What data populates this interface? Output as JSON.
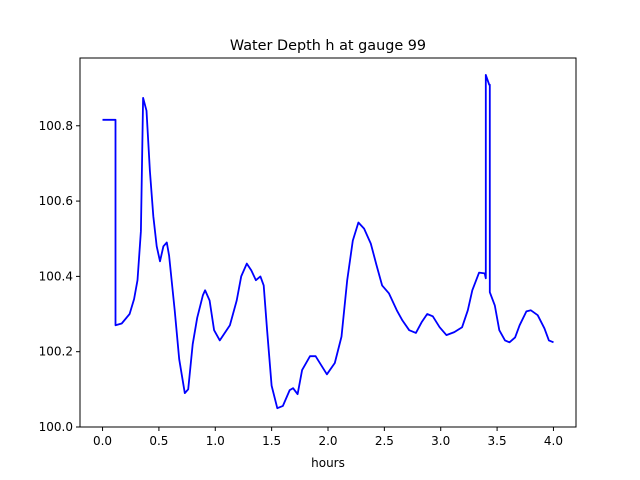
{
  "chart_data": {
    "type": "line",
    "title": "Water Depth h at gauge 99",
    "xlabel": "hours",
    "ylabel": "",
    "xlim": [
      -0.2,
      4.2
    ],
    "ylim": [
      100.0,
      100.98
    ],
    "xticks": [
      0.0,
      0.5,
      1.0,
      1.5,
      2.0,
      2.5,
      3.0,
      3.5,
      4.0
    ],
    "xtick_labels": [
      "0.0",
      "0.5",
      "1.0",
      "1.5",
      "2.0",
      "2.5",
      "3.0",
      "3.5",
      "4.0"
    ],
    "yticks": [
      100.0,
      100.2,
      100.4,
      100.6,
      100.8
    ],
    "ytick_labels": [
      "100.0",
      "100.2",
      "100.4",
      "100.6",
      "100.8"
    ],
    "grid": false,
    "series": [
      {
        "name": "h",
        "color": "#0000ff",
        "x": [
          0,
          0.115,
          0.115,
          0.17,
          0.24,
          0.28,
          0.31,
          0.34,
          0.36,
          0.39,
          0.42,
          0.45,
          0.48,
          0.51,
          0.54,
          0.57,
          0.59,
          0.64,
          0.68,
          0.73,
          0.76,
          0.8,
          0.84,
          0.89,
          0.91,
          0.95,
          0.99,
          1.04,
          1.13,
          1.19,
          1.23,
          1.28,
          1.32,
          1.36,
          1.4,
          1.43,
          1.46,
          1.5,
          1.55,
          1.6,
          1.66,
          1.69,
          1.73,
          1.77,
          1.84,
          1.89,
          1.94,
          1.99,
          2.06,
          2.12,
          2.17,
          2.22,
          2.27,
          2.32,
          2.38,
          2.43,
          2.48,
          2.54,
          2.61,
          2.66,
          2.72,
          2.78,
          2.83,
          2.88,
          2.93,
          2.99,
          3.05,
          3.12,
          3.19,
          3.24,
          3.28,
          3.34,
          3.39,
          3.4,
          3.4,
          3.43,
          3.435,
          3.435,
          3.48,
          3.52,
          3.57,
          3.61,
          3.66,
          3.7,
          3.76,
          3.8,
          3.86,
          3.92,
          3.96,
          4.0
        ],
        "y": [
          100.816,
          100.816,
          100.27,
          100.275,
          100.3,
          100.34,
          100.39,
          100.52,
          100.874,
          100.84,
          100.68,
          100.56,
          100.48,
          100.44,
          100.48,
          100.49,
          100.455,
          100.31,
          100.18,
          100.09,
          100.1,
          100.22,
          100.29,
          100.35,
          100.363,
          100.336,
          100.257,
          100.23,
          100.27,
          100.336,
          100.4,
          100.434,
          100.416,
          100.39,
          100.4,
          100.376,
          100.257,
          100.11,
          100.05,
          100.056,
          100.098,
          100.103,
          100.087,
          100.151,
          100.188,
          100.188,
          100.164,
          100.14,
          100.17,
          100.24,
          100.39,
          100.495,
          100.543,
          100.527,
          100.487,
          100.43,
          100.376,
          100.355,
          100.31,
          100.283,
          100.257,
          100.25,
          100.278,
          100.3,
          100.294,
          100.265,
          100.244,
          100.252,
          100.265,
          100.31,
          100.363,
          100.41,
          100.408,
          100.395,
          100.935,
          100.909,
          100.909,
          100.358,
          100.323,
          100.257,
          100.23,
          100.225,
          100.238,
          100.27,
          100.307,
          100.31,
          100.297,
          100.262,
          100.23,
          100.225
        ]
      }
    ]
  }
}
